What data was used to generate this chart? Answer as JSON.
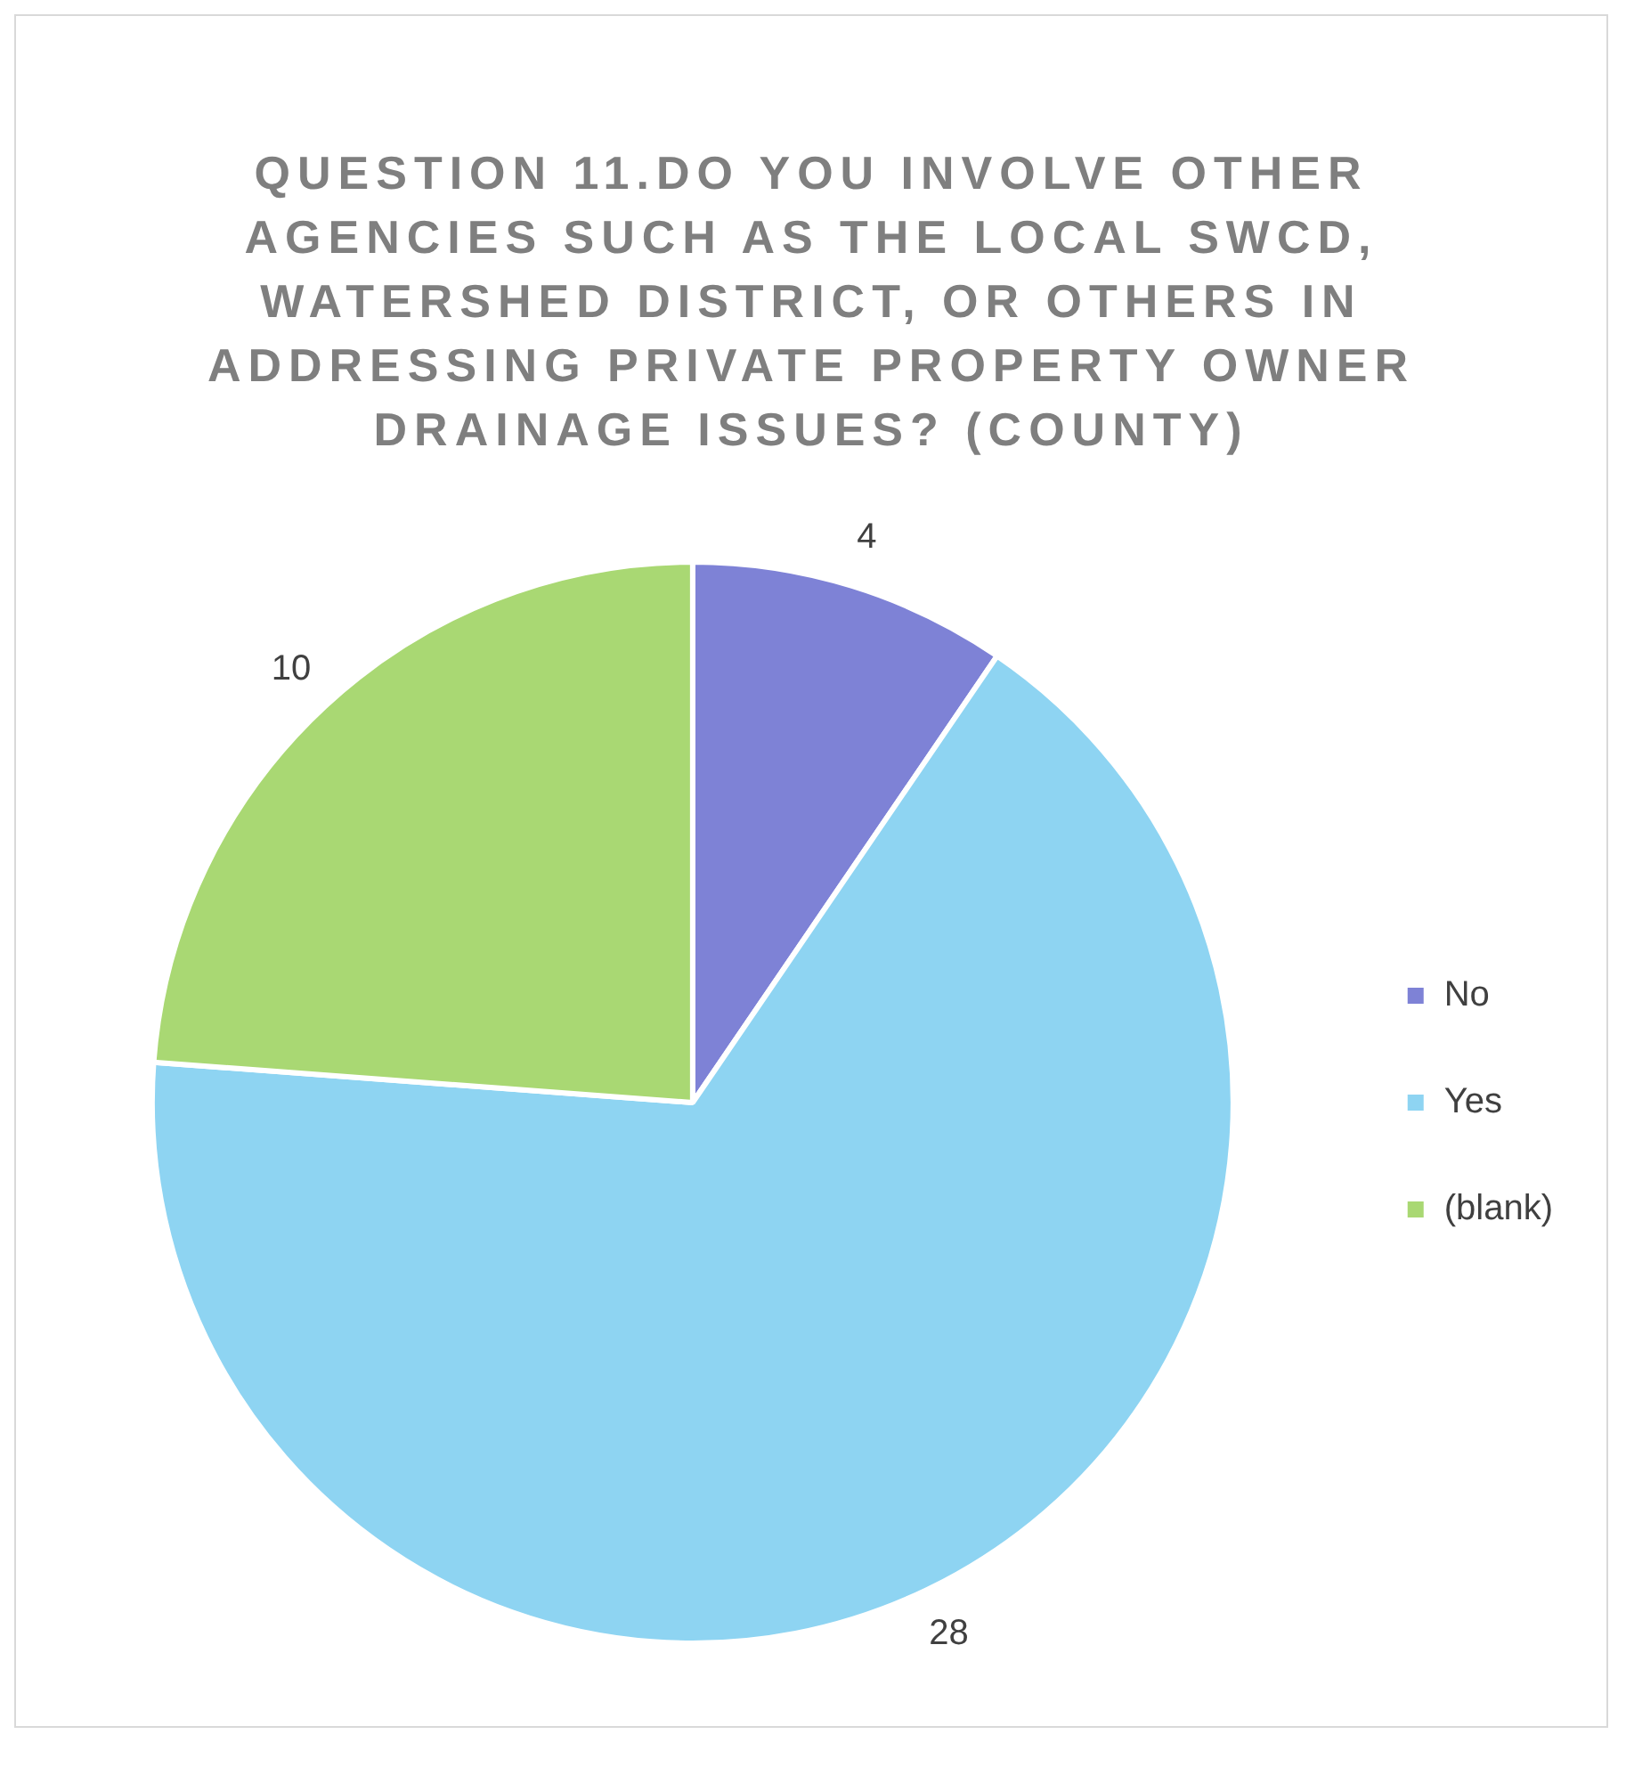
{
  "chart_data": {
    "type": "pie",
    "title": "QUESTION 11.DO YOU INVOLVE OTHER AGENCIES SUCH AS THE LOCAL SWCD, WATERSHED DISTRICT, OR OTHERS IN ADDRESSING PRIVATE PROPERTY OWNER DRAINAGE ISSUES? (COUNTY)",
    "categories": [
      "No",
      "Yes",
      "(blank)"
    ],
    "values": [
      4,
      28,
      10
    ],
    "colors": [
      "#7e82d6",
      "#8ed4f2",
      "#a9d873"
    ],
    "data_labels": true,
    "legend": "right"
  }
}
